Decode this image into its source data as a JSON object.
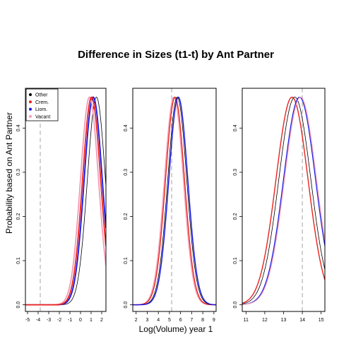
{
  "chart_data": {
    "type": "line",
    "title": "Difference in Sizes (t1-t) by Ant Partner",
    "xlabel": "Log(Volume) year 1",
    "ylabel": "Probability based on Ant Partner",
    "legend": {
      "placement": "top-left",
      "entries": [
        {
          "name": "Other",
          "color": "#000000"
        },
        {
          "name": "Crem.",
          "color": "#e8231e"
        },
        {
          "name": "Liom.",
          "color": "#1414e6"
        },
        {
          "name": "Vacant",
          "color": "#f59ab5"
        }
      ]
    },
    "panels": [
      {
        "xlim": [
          -5.2,
          2.4
        ],
        "ylim": [
          -0.015,
          0.49
        ],
        "xticks": [
          -5,
          -4,
          -3,
          -2,
          -1,
          0,
          1,
          2
        ],
        "yticks": [
          0.0,
          0.1,
          0.2,
          0.3,
          0.4
        ],
        "ytick_labels": [
          "0.0",
          "0.1",
          "0.2",
          "0.3",
          "0.4"
        ],
        "vline": -3.8,
        "curves": [
          {
            "series": "Other",
            "color": "#000000",
            "width": 0.8,
            "mu": 1.5,
            "sd": 0.85,
            "peak": 0.47
          },
          {
            "series": "Liom.",
            "color": "#1414e6",
            "width": 1.8,
            "mu": 1.2,
            "sd": 0.85,
            "peak": 0.47
          },
          {
            "series": "Vacant",
            "color": "#f59ab5",
            "width": 1.8,
            "mu": 0.85,
            "sd": 0.85,
            "peak": 0.47
          },
          {
            "series": "Crem.",
            "color": "#e8231e",
            "width": 1.8,
            "mu": 1.05,
            "sd": 0.85,
            "peak": 0.47
          }
        ]
      },
      {
        "xlim": [
          1.7,
          9.2
        ],
        "ylim": [
          -0.015,
          0.49
        ],
        "xticks": [
          2,
          3,
          4,
          5,
          6,
          7,
          8,
          9
        ],
        "yticks": [
          0.0,
          0.1,
          0.2,
          0.3,
          0.4
        ],
        "ytick_labels": [
          "0.0",
          "0.1",
          "0.2",
          "0.3",
          "0.4"
        ],
        "vline": 5.2,
        "curves": [
          {
            "series": "Vacant",
            "color": "#f59ab5",
            "width": 1.4,
            "mu": 5.4,
            "sd": 0.85,
            "peak": 0.47
          },
          {
            "series": "Crem.",
            "color": "#e8231e",
            "width": 1.4,
            "mu": 5.5,
            "sd": 0.85,
            "peak": 0.47
          },
          {
            "series": "Other",
            "color": "#000000",
            "width": 0.8,
            "mu": 5.7,
            "sd": 0.85,
            "peak": 0.47
          },
          {
            "series": "Liom.",
            "color": "#1414e6",
            "width": 1.4,
            "mu": 5.8,
            "sd": 0.85,
            "peak": 0.47
          }
        ]
      },
      {
        "xlim": [
          10.8,
          15.2
        ],
        "ylim": [
          -0.015,
          0.49
        ],
        "xticks": [
          11,
          12,
          13,
          14,
          15
        ],
        "yticks": [
          0.0,
          0.1,
          0.2,
          0.3,
          0.4
        ],
        "ytick_labels": [
          "0.0",
          "0.1",
          "0.2",
          "0.3",
          "0.4"
        ],
        "vline": 14.0,
        "curves": [
          {
            "series": "Crem.",
            "color": "#e8231e",
            "width": 1.4,
            "mu": 13.45,
            "sd": 0.85,
            "peak": 0.47
          },
          {
            "series": "Other",
            "color": "#000000",
            "width": 0.8,
            "mu": 13.6,
            "sd": 0.85,
            "peak": 0.47
          },
          {
            "series": "Liom.",
            "color": "#1414e6",
            "width": 1.2,
            "mu": 13.85,
            "sd": 0.85,
            "peak": 0.47
          },
          {
            "series": "Vacant",
            "color": "#f59ab5",
            "width": 1.2,
            "mu": 13.9,
            "sd": 0.85,
            "peak": 0.47
          }
        ]
      }
    ]
  }
}
